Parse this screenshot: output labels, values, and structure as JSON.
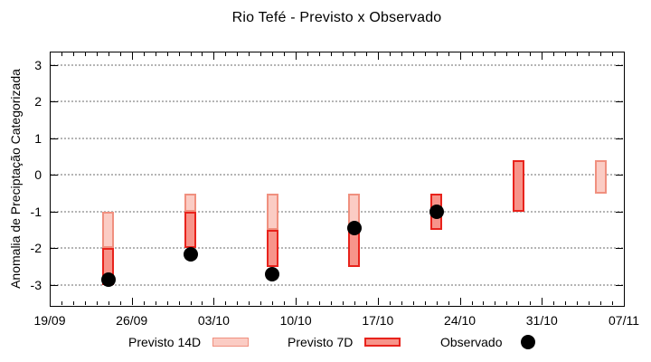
{
  "title": "Rio Tefé - Previsto x Observado",
  "legend": {
    "previsto_14d": "Previsto 14D",
    "previsto_7d": "Previsto 7D",
    "observado": "Observado"
  },
  "colors": {
    "p14_fill": "#fbccc4",
    "p14_border": "#f0907f",
    "p7_fill": "#f7948a",
    "p7_border": "#e8231c",
    "observed": "#000000",
    "grid": "#b5b5b5"
  },
  "chart_data": {
    "type": "bar",
    "subtype": "floating-range-bars-with-scatter",
    "title": "Rio Tefé - Previsto x Observado",
    "xlabel": "",
    "ylabel": "Anomalia de Preciptação Categorizada",
    "ylim": [
      -3.57,
      3.37
    ],
    "yticks": [
      3,
      2,
      1,
      0,
      -1,
      -2,
      -3
    ],
    "x_tick_labels": [
      "19/09",
      "26/09",
      "03/10",
      "10/10",
      "17/10",
      "24/10",
      "31/10",
      "07/11"
    ],
    "x_span_days": 49,
    "grid": "horizontal-dotted",
    "legend_position": "bottom",
    "series": [
      {
        "name": "Previsto 14D",
        "key": "previsto-14d",
        "type": "range-bar",
        "fill": "#fbccc4",
        "stroke": "#f0907f",
        "points": [
          {
            "date": "24/09",
            "day": 5,
            "low": -2.0,
            "high": -1.0
          },
          {
            "date": "01/10",
            "day": 12,
            "low": -1.0,
            "high": -0.5
          },
          {
            "date": "08/10",
            "day": 19,
            "low": -1.5,
            "high": -0.5
          },
          {
            "date": "15/10",
            "day": 26,
            "low": -1.5,
            "high": -0.5
          },
          {
            "date": "05/11",
            "day": 47,
            "low": -0.5,
            "high": 0.4
          }
        ]
      },
      {
        "name": "Previsto 7D",
        "key": "previsto-7d",
        "type": "range-bar",
        "fill": "#f7948a",
        "stroke": "#e8231c",
        "points": [
          {
            "date": "24/09",
            "day": 5,
            "low": -3.0,
            "high": -2.0
          },
          {
            "date": "01/10",
            "day": 12,
            "low": -2.0,
            "high": -1.0
          },
          {
            "date": "08/10",
            "day": 19,
            "low": -2.5,
            "high": -1.5
          },
          {
            "date": "15/10",
            "day": 26,
            "low": -2.5,
            "high": -1.5
          },
          {
            "date": "22/10",
            "day": 33,
            "low": -1.5,
            "high": -0.5
          },
          {
            "date": "29/10",
            "day": 40,
            "low": -1.0,
            "high": 0.4
          }
        ]
      },
      {
        "name": "Observado",
        "key": "observado",
        "type": "scatter",
        "fill": "#000000",
        "points": [
          {
            "date": "24/09",
            "day": 5,
            "value": -2.85
          },
          {
            "date": "01/10",
            "day": 12,
            "value": -2.15
          },
          {
            "date": "08/10",
            "day": 19,
            "value": -2.7
          },
          {
            "date": "15/10",
            "day": 26,
            "value": -1.45
          },
          {
            "date": "22/10",
            "day": 33,
            "value": -1.0
          }
        ]
      }
    ]
  }
}
